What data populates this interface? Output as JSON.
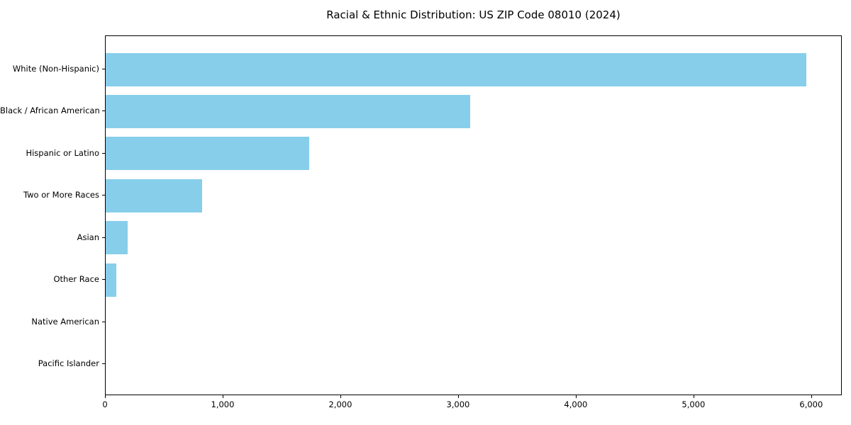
{
  "chart_data": {
    "type": "bar",
    "orientation": "horizontal",
    "title": "Racial & Ethnic Distribution: US ZIP Code 08010 (2024)",
    "categories": [
      "White (Non-Hispanic)",
      "Black / African American",
      "Hispanic or Latino",
      "Two or More Races",
      "Asian",
      "Other Race",
      "Native American",
      "Pacific Islander"
    ],
    "values": [
      5950,
      3095,
      1730,
      820,
      185,
      90,
      0,
      0
    ],
    "xlabel": "",
    "ylabel": "",
    "xlim": [
      0,
      6260
    ],
    "xticks": [
      0,
      1000,
      2000,
      3000,
      4000,
      5000,
      6000
    ],
    "xtick_labels": [
      "0",
      "1,000",
      "2,000",
      "3,000",
      "4,000",
      "5,000",
      "6,000"
    ],
    "bar_color": "#87CEEB",
    "spine_color": "#000000",
    "grid": false,
    "legend": null
  }
}
